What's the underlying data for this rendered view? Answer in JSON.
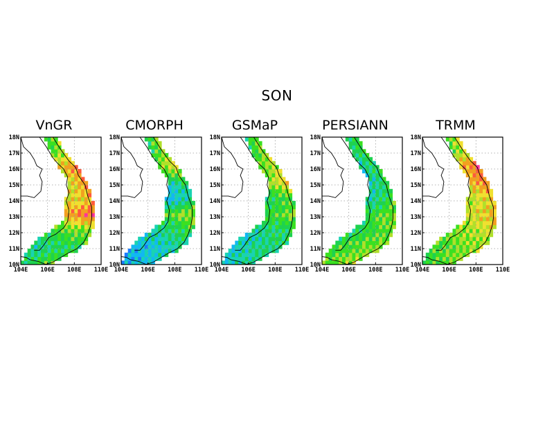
{
  "title": "SON",
  "axes": {
    "lon": {
      "min": 104,
      "max": 110,
      "ticks": [
        104,
        106,
        108,
        110
      ],
      "labels": [
        "104E",
        "106E",
        "108E",
        "110E"
      ]
    },
    "lat": {
      "min": 10,
      "max": 18,
      "ticks": [
        10,
        11,
        12,
        13,
        14,
        15,
        16,
        17,
        18
      ],
      "labels": [
        "10N",
        "11N",
        "12N",
        "13N",
        "14N",
        "15N",
        "16N",
        "17N",
        "18N"
      ]
    }
  },
  "grid": true,
  "panels": [
    {
      "name": "VnGR",
      "profile": [
        3.8,
        3.2,
        4.6,
        8.0,
        6.5,
        6.8,
        7.2,
        5.0
      ]
    },
    {
      "name": "CMORPH",
      "profile": [
        1.8,
        2.0,
        3.2,
        4.8,
        2.2,
        3.0,
        5.8,
        4.5
      ]
    },
    {
      "name": "GSMaP",
      "profile": [
        2.5,
        2.8,
        3.0,
        4.5,
        3.8,
        6.0,
        5.2,
        4.5
      ]
    },
    {
      "name": "PERSIANN",
      "profile": [
        5.0,
        4.5,
        4.0,
        4.5,
        3.2,
        3.0,
        3.0,
        3.5
      ]
    },
    {
      "name": "TRMM",
      "profile": [
        4.5,
        4.8,
        5.5,
        6.5,
        6.0,
        7.5,
        8.0,
        5.5
      ]
    }
  ],
  "colors": {
    "scale": [
      "#3b33ff",
      "#1a7cff",
      "#11b8f2",
      "#19d3b2",
      "#1ed250",
      "#3ae021",
      "#b0e02a",
      "#f0e030",
      "#f2a020",
      "#ff5a3c",
      "#ff3399",
      "#e0207a"
    ],
    "gridline": "#999999",
    "coast": "#000000"
  }
}
